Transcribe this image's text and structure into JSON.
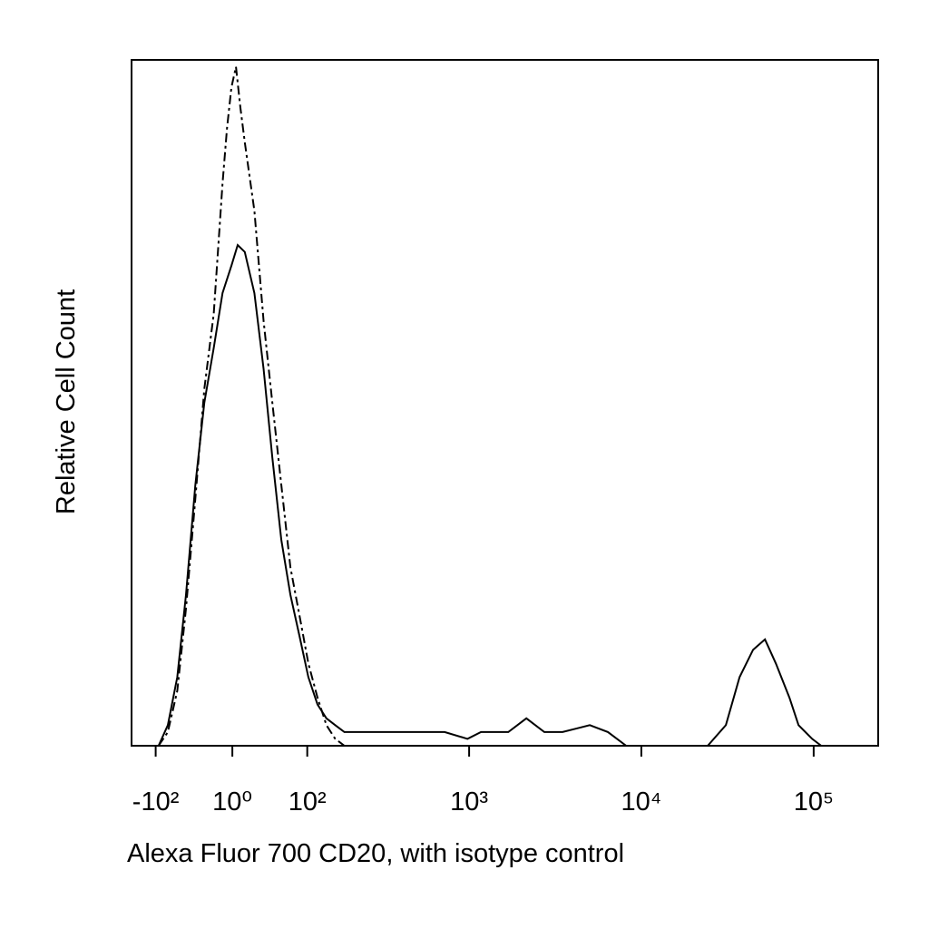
{
  "chart_data": {
    "type": "histogram-line",
    "x_label": "Alexa Fluor 700 CD20, with isotype control",
    "y_label": "Relative Cell Count",
    "xscale": "biexponential",
    "xlim": [
      -148,
      236800
    ],
    "ylim": [
      0,
      100
    ],
    "xticks": [
      {
        "value": -100,
        "label": "-10²"
      },
      {
        "value": 1,
        "label": "10⁰"
      },
      {
        "value": 100,
        "label": "10²"
      },
      {
        "value": 1000,
        "label": "10³"
      },
      {
        "value": 10000,
        "label": "10⁴"
      },
      {
        "value": 100000,
        "label": "10⁵"
      }
    ],
    "series": [
      {
        "color": "#000000",
        "line_style": "solid",
        "x": [
          -95,
          -80,
          -66,
          -54,
          -42,
          -31,
          -20,
          -10,
          0,
          7,
          15,
          26,
          37,
          48,
          60,
          73,
          87,
          102,
          119,
          137,
          157,
          180,
          236,
          344,
          499,
          720,
          978,
          1172,
          1690,
          2151,
          2737,
          3490,
          5022,
          6403,
          8161,
          24273,
          30935,
          37138,
          44528,
          52145,
          60306,
          72367,
          81658,
          98013,
          110568
        ],
        "values": [
          0,
          3,
          10,
          22,
          38,
          50,
          58,
          66,
          70,
          73,
          72,
          66,
          55,
          42,
          30,
          22,
          16,
          10,
          6,
          4,
          3,
          2,
          2,
          2,
          2,
          2,
          1,
          2,
          2,
          4,
          2,
          2,
          3,
          2,
          0,
          0,
          3,
          10,
          14,
          15.5,
          12,
          7,
          3,
          1,
          0
        ]
      },
      {
        "color": "#000000",
        "line_style": "dashed",
        "x": [
          -95,
          -80,
          -66,
          -54,
          -42,
          -31,
          -20,
          -10,
          -5,
          0,
          5,
          10,
          15,
          26,
          37,
          48,
          60,
          73,
          87,
          102,
          119,
          137,
          157,
          180
        ],
        "values": [
          0,
          2,
          8,
          20,
          36,
          52,
          63,
          82,
          90,
          96,
          99,
          93,
          88,
          78,
          62,
          50,
          38,
          26,
          19,
          12,
          7,
          3,
          1,
          0
        ]
      }
    ]
  }
}
